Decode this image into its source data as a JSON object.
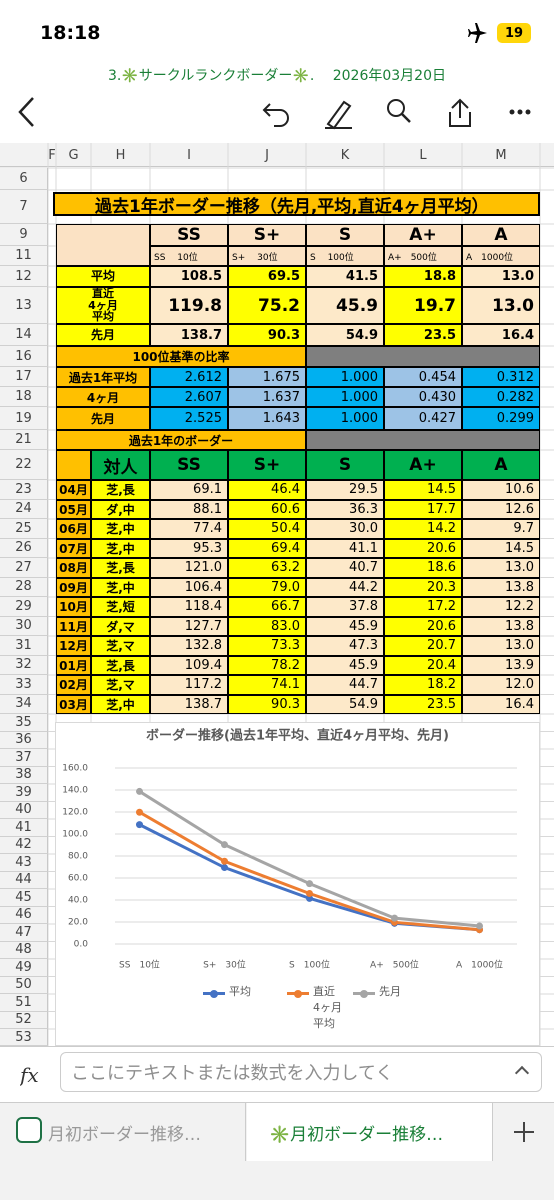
{
  "status_bar": {
    "time": "18:18",
    "battery": "19"
  },
  "document_title": "3.✳️サークルランクボーダー✳️.　 2026年03月20日",
  "column_headers": [
    "F",
    "G",
    "H",
    "I",
    "J",
    "K",
    "L",
    "M"
  ],
  "row_numbers": [
    "6",
    "7",
    "9",
    "11",
    "12",
    "13",
    "14",
    "16",
    "17",
    "18",
    "19",
    "21",
    "22",
    "23",
    "24",
    "25",
    "26",
    "27",
    "28",
    "29",
    "30",
    "31",
    "32",
    "33",
    "34",
    "35",
    "36",
    "37",
    "38",
    "39",
    "40",
    "41",
    "42",
    "43",
    "44",
    "45",
    "46",
    "47",
    "48",
    "49",
    "50",
    "51",
    "52",
    "53"
  ],
  "summary_table": {
    "title": "過去1年ボーダー推移（先月,平均,直近4ヶ月平均）",
    "header": [
      "SS",
      "S+",
      "S",
      "A+",
      "A"
    ],
    "subheader": [
      "SS　 10位",
      "S+　 30位",
      "S　 100位",
      "A+　500位",
      "A　1000位"
    ],
    "rows": [
      {
        "label": "平均",
        "values": [
          "108.5",
          "69.5",
          "41.5",
          "18.8",
          "13.0"
        ]
      },
      {
        "label": "直近\n4ヶ月\n平均",
        "values": [
          "119.8",
          "75.2",
          "45.9",
          "19.7",
          "13.0"
        ]
      },
      {
        "label": "先月",
        "values": [
          "138.7",
          "90.3",
          "54.9",
          "23.5",
          "16.4"
        ]
      }
    ]
  },
  "ratio_table": {
    "title": "100位基準の比率",
    "rows": [
      {
        "label": "過去1年平均",
        "values": [
          "2.612",
          "1.675",
          "1.000",
          "0.454",
          "0.312"
        ]
      },
      {
        "label": "4ヶ月",
        "values": [
          "2.607",
          "1.637",
          "1.000",
          "0.430",
          "0.282"
        ]
      },
      {
        "label": "先月",
        "values": [
          "2.525",
          "1.643",
          "1.000",
          "0.427",
          "0.299"
        ]
      }
    ]
  },
  "monthly_table": {
    "title": "過去1年のボーダー",
    "header": [
      "対人",
      "SS",
      "S+",
      "S",
      "A+",
      "A"
    ],
    "rows": [
      {
        "month": "04月",
        "type": "芝,長",
        "values": [
          "69.1",
          "46.4",
          "29.5",
          "14.5",
          "10.6"
        ]
      },
      {
        "month": "05月",
        "type": "ダ,中",
        "values": [
          "88.1",
          "60.6",
          "36.3",
          "17.7",
          "12.6"
        ]
      },
      {
        "month": "06月",
        "type": "芝,中",
        "values": [
          "77.4",
          "50.4",
          "30.0",
          "14.2",
          "9.7"
        ]
      },
      {
        "month": "07月",
        "type": "芝,中",
        "values": [
          "95.3",
          "69.4",
          "41.1",
          "20.6",
          "14.5"
        ]
      },
      {
        "month": "08月",
        "type": "芝,長",
        "values": [
          "121.0",
          "63.2",
          "40.7",
          "18.6",
          "13.0"
        ]
      },
      {
        "month": "09月",
        "type": "芝,中",
        "values": [
          "106.4",
          "79.0",
          "44.2",
          "20.3",
          "13.8"
        ]
      },
      {
        "month": "10月",
        "type": "芝,短",
        "values": [
          "118.4",
          "66.7",
          "37.8",
          "17.2",
          "12.2"
        ]
      },
      {
        "month": "11月",
        "type": "ダ,マ",
        "values": [
          "127.7",
          "83.0",
          "45.9",
          "20.6",
          "13.8"
        ]
      },
      {
        "month": "12月",
        "type": "芝,マ",
        "values": [
          "132.8",
          "73.3",
          "47.3",
          "20.7",
          "13.0"
        ]
      },
      {
        "month": "01月",
        "type": "芝,長",
        "values": [
          "109.4",
          "78.2",
          "45.9",
          "20.4",
          "13.9"
        ]
      },
      {
        "month": "02月",
        "type": "芝,マ",
        "values": [
          "117.2",
          "74.1",
          "44.7",
          "18.2",
          "12.0"
        ]
      },
      {
        "month": "03月",
        "type": "芝,中",
        "values": [
          "138.7",
          "90.3",
          "54.9",
          "23.5",
          "16.4"
        ]
      }
    ]
  },
  "chart_data": {
    "type": "line",
    "title": "ボーダー推移(過去1年平均、直近4ヶ月平均、先月)",
    "categories": [
      "SS　10位",
      "S+　30位",
      "S　100位",
      "A+　500位",
      "A　1000位"
    ],
    "series": [
      {
        "name": "平均",
        "color": "#4472c4",
        "values": [
          108.5,
          69.5,
          41.5,
          18.8,
          13.0
        ]
      },
      {
        "name": "直近\n4ヶ月\n平均",
        "color": "#ed7d31",
        "values": [
          119.8,
          75.2,
          45.9,
          19.7,
          13.0
        ]
      },
      {
        "name": "先月",
        "color": "#a5a5a5",
        "values": [
          138.7,
          90.3,
          54.9,
          23.5,
          16.4
        ]
      }
    ],
    "ylim": [
      0,
      160
    ],
    "yticks": [
      {
        "value": 0,
        "label": "0.0"
      },
      {
        "value": 20,
        "label": "20.0"
      },
      {
        "value": 40,
        "label": "40.0"
      },
      {
        "value": 60,
        "label": "60.0"
      },
      {
        "value": 80,
        "label": "80.0"
      },
      {
        "value": 100,
        "label": "100.0"
      },
      {
        "value": 120,
        "label": "120.0"
      },
      {
        "value": 140,
        "label": "140.0"
      },
      {
        "value": 160,
        "label": "160.0"
      }
    ],
    "grid": true,
    "legend": "bottom"
  },
  "formula_bar": {
    "label": "fx",
    "placeholder": "ここにテキストまたは数式を入力してく"
  },
  "sheet_tabs": [
    "月初ボーダー推移…",
    "✳️月初ボーダー推移…"
  ]
}
